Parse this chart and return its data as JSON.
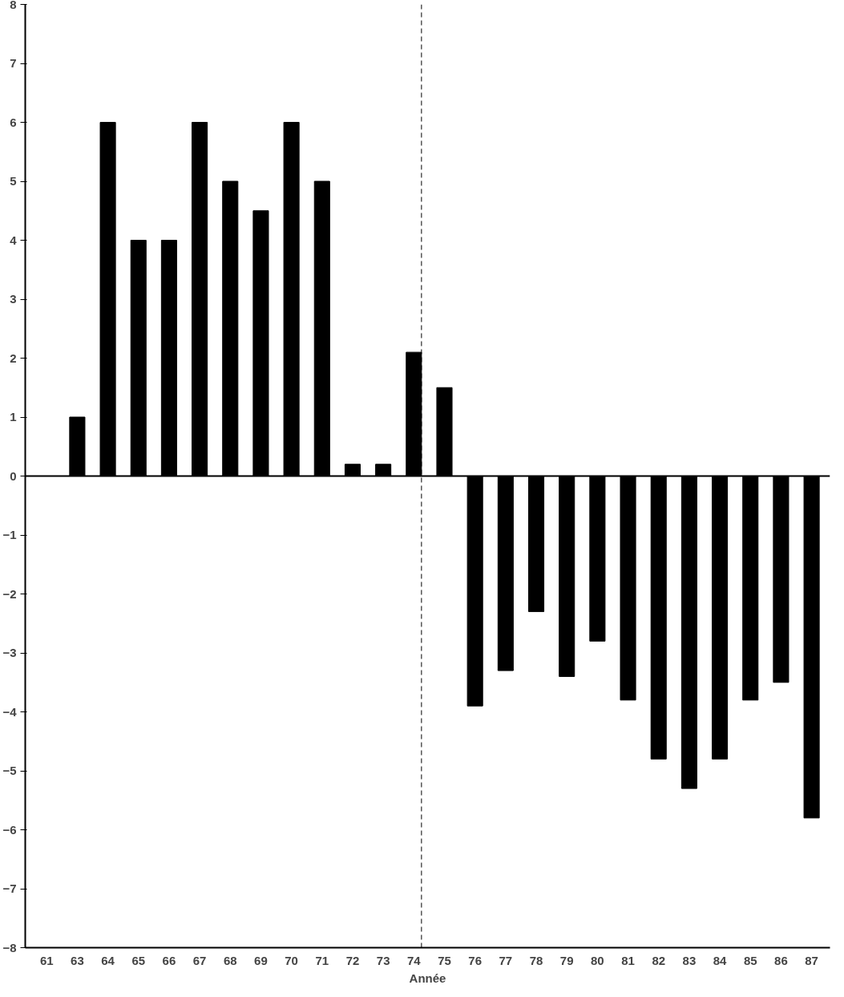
{
  "chart_data": {
    "type": "bar",
    "xlabel": "Année",
    "categories": [
      "61",
      "63",
      "64",
      "65",
      "66",
      "67",
      "68",
      "69",
      "70",
      "71",
      "72",
      "73",
      "74",
      "75",
      "76",
      "77",
      "78",
      "79",
      "80",
      "81",
      "82",
      "83",
      "84",
      "85",
      "86",
      "87"
    ],
    "values": [
      0,
      1.0,
      6.0,
      4.0,
      4.0,
      6.0,
      5.0,
      4.5,
      6.0,
      5.0,
      0.2,
      0.2,
      2.1,
      1.5,
      -3.9,
      -3.3,
      -2.3,
      -3.4,
      -2.8,
      -3.8,
      -4.8,
      -5.3,
      -4.8,
      -3.8,
      -3.5,
      -5.8
    ],
    "color": "#000000",
    "ylim": [
      -8,
      8
    ],
    "yticks": [
      -8,
      -7,
      -6,
      -5,
      -4,
      -3,
      -2,
      -1,
      0,
      1,
      2,
      3,
      4,
      5,
      6,
      7,
      8
    ],
    "ref_lines": [
      {
        "axis": "y",
        "value": 0,
        "line_style": "solid",
        "color": "#000000"
      },
      {
        "axis": "x",
        "value": "74",
        "line_style": "dashed",
        "color": "#000000"
      }
    ],
    "grid": false
  }
}
